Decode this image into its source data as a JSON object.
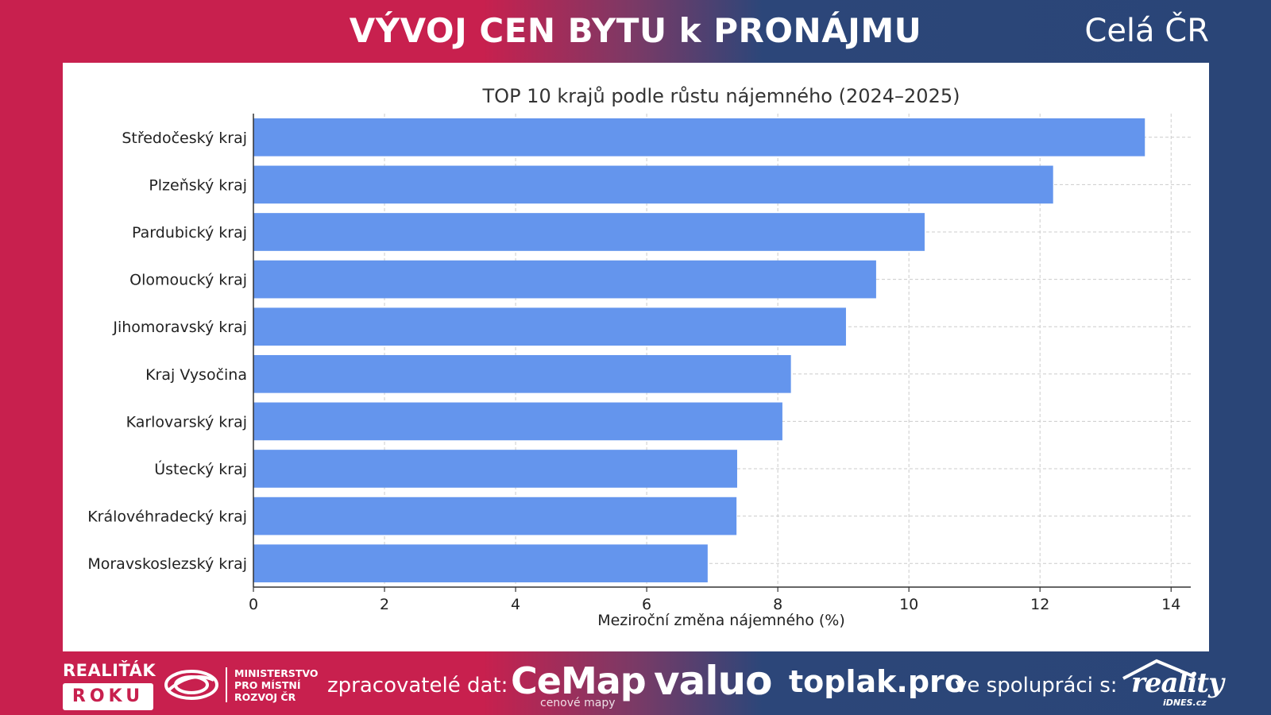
{
  "header": {
    "title": "VÝVOJ CEN BYTU k PRONÁJMU",
    "region": "Celá ČR"
  },
  "colors": {
    "bar": "#6495ed",
    "brand_red": "#c8204e",
    "brand_blue": "#2a4577"
  },
  "chart_data": {
    "type": "bar",
    "orientation": "horizontal",
    "title": "TOP 10 krajů podle růstu nájemného (2024–2025)",
    "xlabel": "Meziroční změna nájemného (%)",
    "ylabel": "",
    "categories": [
      "Středočeský kraj",
      "Plzeňský kraj",
      "Pardubický kraj",
      "Olomoucký kraj",
      "Jihomoravský kraj",
      "Kraj Vysočina",
      "Karlovarský kraj",
      "Ústecký kraj",
      "Královéhradecký kraj",
      "Moravskoslezský kraj"
    ],
    "values": [
      13.6,
      12.2,
      10.24,
      9.5,
      9.04,
      8.2,
      8.07,
      7.38,
      7.37,
      6.93
    ],
    "xlim": [
      0,
      14.3
    ],
    "xticks": [
      0,
      2,
      4,
      6,
      8,
      10,
      12,
      14
    ],
    "grid": true,
    "grid_style": "dashed"
  },
  "footer": {
    "award_top": "REALIŤÁK",
    "award_bottom": "ROKU",
    "ministry_lines": [
      "MINISTERSTVO",
      "PRO MÍSTNÍ",
      "ROZVOJ ČR"
    ],
    "processors_label": "zpracovatelé dat:",
    "cemap": "CeMap",
    "cemap_sub": "cenové mapy",
    "valuo": "valuo",
    "toplak": "toplak.pro",
    "cooperation_label": "ve spolupráci s:",
    "reality": "reality",
    "idnes": "iDNES.cz"
  }
}
